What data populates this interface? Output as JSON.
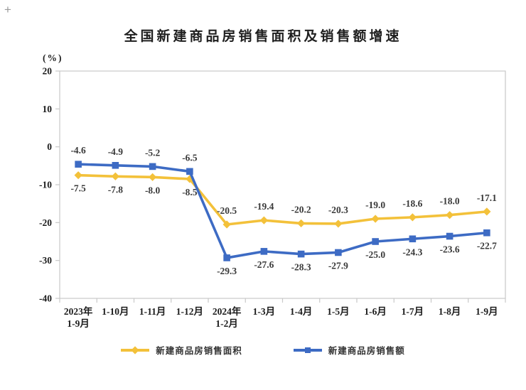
{
  "decorations": {
    "corner_mark": "+"
  },
  "chart_data": {
    "type": "line",
    "title": "全国新建商品房销售面积及销售额增速",
    "ylabel": "(%)",
    "xlabel": "",
    "ylim": [
      -40,
      20
    ],
    "yticks": [
      20,
      10,
      0,
      -10,
      -20,
      -30,
      -40
    ],
    "grid": false,
    "legend_position": "bottom",
    "categories": [
      [
        "2023年",
        "1-9月"
      ],
      [
        "1-10月"
      ],
      [
        "1-11月"
      ],
      [
        "1-12月"
      ],
      [
        "2024年",
        "1-2月"
      ],
      [
        "1-3月"
      ],
      [
        "1-4月"
      ],
      [
        "1-5月"
      ],
      [
        "1-6月"
      ],
      [
        "1-7月"
      ],
      [
        "1-8月"
      ],
      [
        "1-9月"
      ]
    ],
    "series": [
      {
        "name": "新建商品房销售面积",
        "marker": "diamond",
        "color": "#F3C13A",
        "values": [
          -7.5,
          -7.8,
          -8.0,
          -8.5,
          -20.5,
          -19.4,
          -20.2,
          -20.3,
          -19.0,
          -18.6,
          -18.0,
          -17.1
        ],
        "labels": [
          "-7.5",
          "-7.8",
          "-8.0",
          "-8.5",
          "-20.5",
          "-19.4",
          "-20.2",
          "-20.3",
          "-19.0",
          "-18.6",
          "-18.0",
          "-17.1"
        ]
      },
      {
        "name": "新建商品房销售额",
        "marker": "square",
        "color": "#3D6BC4",
        "values": [
          -4.6,
          -4.9,
          -5.2,
          -6.5,
          -29.3,
          -27.6,
          -28.3,
          -27.9,
          -25.0,
          -24.3,
          -23.6,
          -22.7
        ],
        "labels": [
          "-4.6",
          "-4.9",
          "-5.2",
          "-6.5",
          "-29.3",
          "-27.6",
          "-28.3",
          "-27.9",
          "-25.0",
          "-24.3",
          "-23.6",
          "-22.7"
        ]
      }
    ],
    "axis_color": "#c9c9c9"
  }
}
